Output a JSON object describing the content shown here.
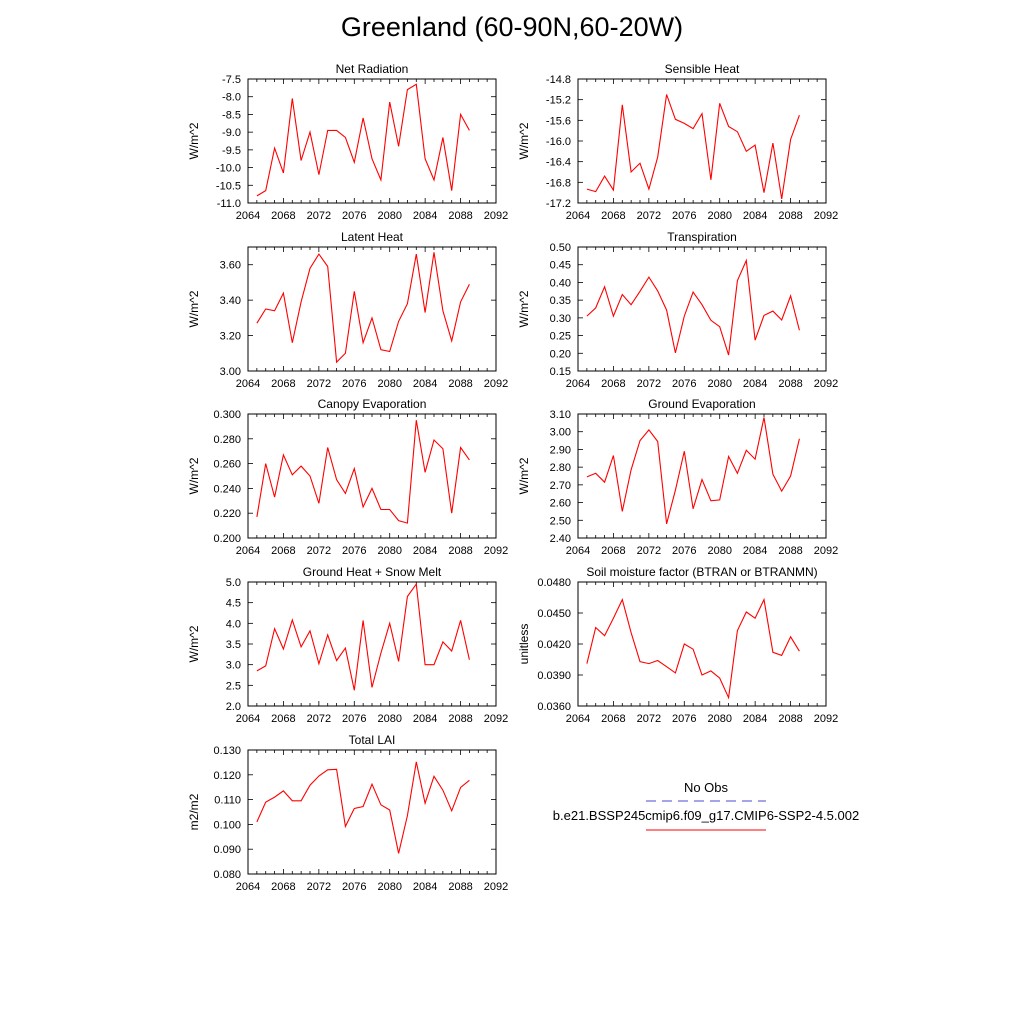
{
  "title": "Greenland (60-90N,60-20W)",
  "colors": {
    "series": "#ff0000",
    "obs": "#4b4bcc",
    "axis": "#000000"
  },
  "legend": {
    "obs_label": "No Obs",
    "model_label": "b.e21.BSSP245cmip6.f09_g17.CMIP6-SSP2-4.5.002"
  },
  "x": [
    2065,
    2066,
    2067,
    2068,
    2069,
    2070,
    2071,
    2072,
    2073,
    2074,
    2075,
    2076,
    2077,
    2078,
    2079,
    2080,
    2081,
    2082,
    2083,
    2084,
    2085,
    2086,
    2087,
    2088,
    2089
  ],
  "chart_data": [
    {
      "type": "line",
      "title": "Net Radiation",
      "ylabel": "W/m^2",
      "xlim": [
        2064,
        2092
      ],
      "xticks": [
        "2064",
        "2068",
        "2072",
        "2076",
        "2080",
        "2084",
        "2088",
        "2092"
      ],
      "ylim": [
        -11.0,
        -7.5
      ],
      "yticks": [
        "-7.5",
        "-8.0",
        "-8.5",
        "-9.0",
        "-9.5",
        "-10.0",
        "-10.5",
        "-11.0"
      ],
      "ytick_values": [
        -7.5,
        -8.0,
        -8.5,
        -9.0,
        -9.5,
        -10.0,
        -10.5,
        -11.0
      ],
      "values": [
        -10.8,
        -10.65,
        -9.45,
        -10.15,
        -8.05,
        -9.8,
        -9.0,
        -10.2,
        -8.95,
        -8.95,
        -9.15,
        -9.85,
        -8.6,
        -9.75,
        -10.35,
        -8.15,
        -9.4,
        -7.8,
        -7.65,
        -9.75,
        -10.35,
        -9.15,
        -10.65,
        -8.5,
        -8.95
      ]
    },
    {
      "type": "line",
      "title": "Sensible Heat",
      "ylabel": "W/m^2",
      "xlim": [
        2064,
        2092
      ],
      "xticks": [
        "2064",
        "2068",
        "2072",
        "2076",
        "2080",
        "2084",
        "2088",
        "2092"
      ],
      "ylim": [
        -17.2,
        -14.8
      ],
      "yticks": [
        "-14.8",
        "-15.2",
        "-15.6",
        "-16.0",
        "-16.4",
        "-16.8",
        "-17.2"
      ],
      "ytick_values": [
        -14.8,
        -15.2,
        -15.6,
        -16.0,
        -16.4,
        -16.8,
        -17.2
      ],
      "values": [
        -16.93,
        -16.98,
        -16.68,
        -16.95,
        -15.3,
        -16.6,
        -16.43,
        -16.93,
        -16.31,
        -15.1,
        -15.58,
        -15.66,
        -15.76,
        -15.47,
        -16.75,
        -15.27,
        -15.72,
        -15.82,
        -16.2,
        -16.08,
        -17.0,
        -16.04,
        -17.12,
        -15.97,
        -15.5
      ]
    },
    {
      "type": "line",
      "title": "Latent Heat",
      "ylabel": "W/m^2",
      "xlim": [
        2064,
        2092
      ],
      "xticks": [
        "2064",
        "2068",
        "2072",
        "2076",
        "2080",
        "2084",
        "2088",
        "2092"
      ],
      "ylim": [
        3.0,
        3.7
      ],
      "yticks": [
        "3.60",
        "3.40",
        "3.20",
        "3.00"
      ],
      "ytick_values": [
        3.6,
        3.4,
        3.2,
        3.0
      ],
      "values": [
        3.27,
        3.35,
        3.34,
        3.44,
        3.16,
        3.39,
        3.58,
        3.66,
        3.59,
        3.05,
        3.1,
        3.45,
        3.16,
        3.3,
        3.12,
        3.11,
        3.28,
        3.38,
        3.66,
        3.33,
        3.67,
        3.34,
        3.17,
        3.39,
        3.49
      ]
    },
    {
      "type": "line",
      "title": "Transpiration",
      "ylabel": "W/m^2",
      "xlim": [
        2064,
        2092
      ],
      "xticks": [
        "2064",
        "2068",
        "2072",
        "2076",
        "2080",
        "2084",
        "2088",
        "2092"
      ],
      "ylim": [
        0.15,
        0.5
      ],
      "yticks": [
        "0.50",
        "0.45",
        "0.40",
        "0.35",
        "0.30",
        "0.25",
        "0.20",
        "0.15"
      ],
      "ytick_values": [
        0.5,
        0.45,
        0.4,
        0.35,
        0.3,
        0.25,
        0.2,
        0.15
      ],
      "values": [
        0.305,
        0.328,
        0.388,
        0.305,
        0.366,
        0.337,
        0.375,
        0.415,
        0.376,
        0.322,
        0.201,
        0.305,
        0.373,
        0.337,
        0.293,
        0.275,
        0.195,
        0.405,
        0.462,
        0.237,
        0.307,
        0.319,
        0.294,
        0.362,
        0.265
      ]
    },
    {
      "type": "line",
      "title": "Canopy Evaporation",
      "ylabel": "W/m^2",
      "xlim": [
        2064,
        2092
      ],
      "xticks": [
        "2064",
        "2068",
        "2072",
        "2076",
        "2080",
        "2084",
        "2088",
        "2092"
      ],
      "ylim": [
        0.2,
        0.3
      ],
      "yticks": [
        "0.300",
        "0.280",
        "0.260",
        "0.240",
        "0.220",
        "0.200"
      ],
      "ytick_values": [
        0.3,
        0.28,
        0.26,
        0.24,
        0.22,
        0.2
      ],
      "values": [
        0.217,
        0.26,
        0.233,
        0.267,
        0.251,
        0.258,
        0.25,
        0.228,
        0.273,
        0.247,
        0.236,
        0.256,
        0.225,
        0.24,
        0.223,
        0.223,
        0.214,
        0.212,
        0.295,
        0.253,
        0.279,
        0.272,
        0.22,
        0.273,
        0.263
      ]
    },
    {
      "type": "line",
      "title": "Ground Evaporation",
      "ylabel": "W/m^2",
      "xlim": [
        2064,
        2092
      ],
      "xticks": [
        "2064",
        "2068",
        "2072",
        "2076",
        "2080",
        "2084",
        "2088",
        "2092"
      ],
      "ylim": [
        2.4,
        3.1
      ],
      "yticks": [
        "3.10",
        "3.00",
        "2.90",
        "2.80",
        "2.70",
        "2.60",
        "2.50",
        "2.40"
      ],
      "ytick_values": [
        3.1,
        3.0,
        2.9,
        2.8,
        2.7,
        2.6,
        2.5,
        2.4
      ],
      "values": [
        2.745,
        2.765,
        2.715,
        2.865,
        2.55,
        2.785,
        2.95,
        3.01,
        2.945,
        2.48,
        2.67,
        2.89,
        2.565,
        2.73,
        2.61,
        2.615,
        2.86,
        2.765,
        2.895,
        2.845,
        3.08,
        2.76,
        2.665,
        2.75,
        2.96
      ]
    },
    {
      "type": "line",
      "title": "Ground Heat + Snow Melt",
      "ylabel": "W/m^2",
      "xlim": [
        2064,
        2092
      ],
      "xticks": [
        "2064",
        "2068",
        "2072",
        "2076",
        "2080",
        "2084",
        "2088",
        "2092"
      ],
      "ylim": [
        2.0,
        5.0
      ],
      "yticks": [
        "5.0",
        "4.5",
        "4.0",
        "3.5",
        "3.0",
        "2.5",
        "2.0"
      ],
      "ytick_values": [
        5.0,
        4.5,
        4.0,
        3.5,
        3.0,
        2.5,
        2.0
      ],
      "values": [
        2.85,
        2.97,
        3.87,
        3.38,
        4.08,
        3.43,
        3.82,
        3.02,
        3.72,
        3.1,
        3.4,
        2.38,
        4.07,
        2.45,
        3.28,
        4.0,
        3.08,
        4.65,
        4.95,
        3.0,
        3.0,
        3.55,
        3.33,
        4.07,
        3.12
      ]
    },
    {
      "type": "line",
      "title": "Soil moisture factor (BTRAN or BTRANMN)",
      "ylabel": "unitless",
      "xlim": [
        2064,
        2092
      ],
      "xticks": [
        "2064",
        "2068",
        "2072",
        "2076",
        "2080",
        "2084",
        "2088",
        "2092"
      ],
      "ylim": [
        0.036,
        0.048
      ],
      "yticks": [
        "0.0480",
        "0.0450",
        "0.0420",
        "0.0390",
        "0.0360"
      ],
      "ytick_values": [
        0.048,
        0.045,
        0.042,
        0.039,
        0.036
      ],
      "values": [
        0.0401,
        0.0436,
        0.0428,
        0.0445,
        0.0463,
        0.0431,
        0.0403,
        0.0401,
        0.0404,
        0.0398,
        0.0392,
        0.042,
        0.0415,
        0.039,
        0.0394,
        0.0387,
        0.0368,
        0.0433,
        0.0451,
        0.0445,
        0.0463,
        0.0412,
        0.0409,
        0.0427,
        0.0413
      ]
    },
    {
      "type": "line",
      "title": "Total LAI",
      "ylabel": "m2/m2",
      "xlim": [
        2064,
        2092
      ],
      "xticks": [
        "2064",
        "2068",
        "2072",
        "2076",
        "2080",
        "2084",
        "2088",
        "2092"
      ],
      "ylim": [
        0.08,
        0.13
      ],
      "yticks": [
        "0.130",
        "0.120",
        "0.110",
        "0.100",
        "0.090",
        "0.080"
      ],
      "ytick_values": [
        0.13,
        0.12,
        0.11,
        0.1,
        0.09,
        0.08
      ],
      "values": [
        0.101,
        0.109,
        0.111,
        0.1135,
        0.1095,
        0.1095,
        0.1158,
        0.1195,
        0.122,
        0.1222,
        0.0992,
        0.1064,
        0.1072,
        0.1162,
        0.1079,
        0.1058,
        0.0883,
        0.1035,
        0.1252,
        0.1085,
        0.1194,
        0.1138,
        0.1055,
        0.1149,
        0.1178
      ]
    }
  ]
}
